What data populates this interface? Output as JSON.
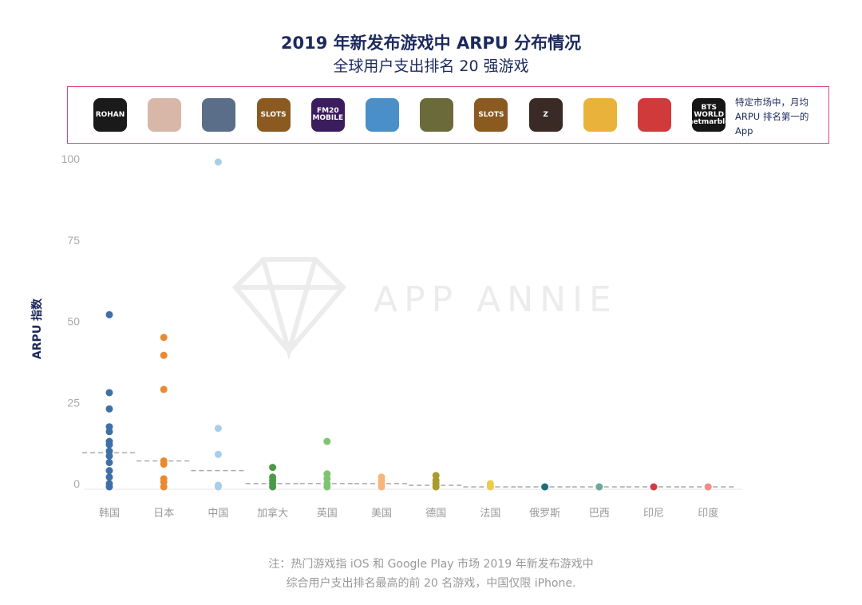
{
  "chart_data": {
    "type": "scatter",
    "title": "2019 年新发布游戏中 ARPU 分布情况",
    "subtitle": "全球用户支出排名 20 强游戏",
    "ylabel": "ARPU 指数",
    "xlabel": "",
    "ylim": [
      0,
      100
    ],
    "yticks": [
      0,
      25,
      50,
      75,
      100
    ],
    "grid": false,
    "categories": [
      "韩国",
      "日本",
      "中国",
      "加拿大",
      "英国",
      "美国",
      "德国",
      "法国",
      "俄罗斯",
      "巴西",
      "印尼",
      "印度"
    ],
    "colors": [
      "#3f6fa6",
      "#e98a30",
      "#a8cfea",
      "#4b9a46",
      "#7dc470",
      "#f6b57b",
      "#a99b2b",
      "#edca4b",
      "#1f6d79",
      "#70a69b",
      "#cc3e46",
      "#f08b87"
    ],
    "values": [
      [
        53,
        29,
        24,
        18.5,
        17,
        14,
        13,
        11,
        9.5,
        7.5,
        5,
        3,
        1,
        0
      ],
      [
        46,
        40.5,
        30,
        8,
        7,
        2.5,
        1.5,
        0
      ],
      [
        100,
        18,
        10,
        0.5,
        0
      ],
      [
        6,
        3,
        2,
        1,
        0
      ],
      [
        14,
        4,
        2.5,
        1,
        0
      ],
      [
        3,
        2,
        1,
        0
      ],
      [
        3.5,
        2,
        1,
        0
      ],
      [
        1,
        0
      ],
      [
        0
      ],
      [
        0
      ],
      [
        0
      ],
      [
        0
      ]
    ],
    "medians": [
      10.5,
      8,
      5,
      1,
      1,
      1,
      0.5,
      0,
      0,
      0,
      0,
      0
    ]
  },
  "legend": {
    "text": "特定市场中，月均 ARPU 排名第一的 App",
    "border_color": "#d9487a",
    "icons": [
      {
        "name": "rohan",
        "color": "#1a1a1a",
        "logo": "ROHAN"
      },
      {
        "name": "anime-girl",
        "color": "#d8b7a8",
        "logo": ""
      },
      {
        "name": "white-tiger",
        "color": "#5a6e8a",
        "logo": ""
      },
      {
        "name": "dragon-slots",
        "color": "#8a5a20",
        "logo": "SLOTS"
      },
      {
        "name": "fm20-mobile",
        "color": "#3b1d5e",
        "logo": "FM20 MOBILE"
      },
      {
        "name": "warship",
        "color": "#4a8fc8",
        "logo": ""
      },
      {
        "name": "hazard",
        "color": "#6b6a3a",
        "logo": ""
      },
      {
        "name": "dragon-slots-2",
        "color": "#8a5a20",
        "logo": "SLOTS"
      },
      {
        "name": "z-game",
        "color": "#3a2a25",
        "logo": "Z"
      },
      {
        "name": "gold-coins",
        "color": "#e9b23a",
        "logo": ""
      },
      {
        "name": "red-dino",
        "color": "#d03a3a",
        "logo": ""
      },
      {
        "name": "bts-world",
        "color": "#151515",
        "logo": "BTS WORLD netmarble"
      }
    ]
  },
  "watermark": "APP ANNIE",
  "notes": [
    "注：热门游戏指 iOS 和 Google Play 市场 2019 年新发布游戏中",
    "综合用户支出排名最高的前 20 名游戏，中国仅限 iPhone."
  ]
}
